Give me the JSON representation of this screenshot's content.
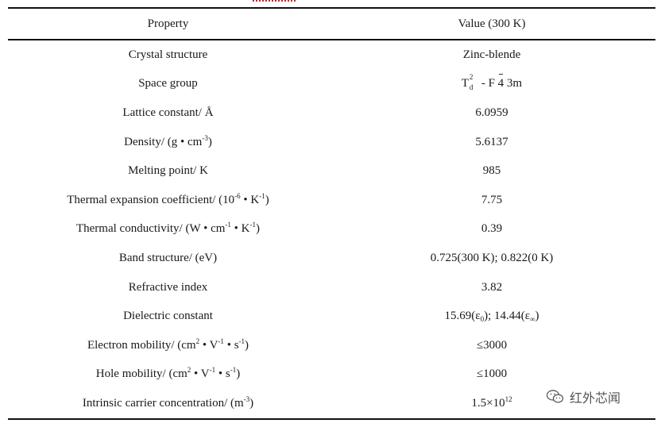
{
  "header": {
    "property": "Property",
    "value": "Value (300 K)"
  },
  "rows": [
    {
      "property": "Crystal structure",
      "value": "Zinc-blende"
    },
    {
      "property": "Space group",
      "value_parts": {
        "T": "T",
        "sup": "2",
        "sub": "d",
        "mid": " - F ",
        "bar": "4",
        "tail": " 3m"
      }
    },
    {
      "property": "Lattice constant/ Å",
      "value": "6.0959"
    },
    {
      "property_parts": {
        "a": "Density/ (g • cm",
        "s1": "-3",
        "b": ")"
      },
      "value": "5.6137"
    },
    {
      "property": "Melting point/ K",
      "value": "985"
    },
    {
      "property_parts": {
        "a": "Thermal expansion coefficient/ (10",
        "s1": "-6",
        "b": " •  K",
        "s2": "-1",
        "c": ")"
      },
      "value": "7.75"
    },
    {
      "property_parts": {
        "a": "Thermal conductivity/ (W • cm",
        "s1": "-1",
        "b": " • K",
        "s2": "-1",
        "c": ")"
      },
      "value": "0.39"
    },
    {
      "property": "Band structure/ (eV)",
      "value": "0.725(300 K); 0.822(0 K)"
    },
    {
      "property": "Refractive index",
      "value": "3.82"
    },
    {
      "property": "Dielectric constant",
      "value_parts": {
        "a": "15.69(ε",
        "s1": "0",
        "b": ");   14.44(ε",
        "s2": "∞",
        "c": ")"
      }
    },
    {
      "property_parts": {
        "a": "Electron mobility/ (cm",
        "s1": "2",
        "b": " • V",
        "s2": "-1",
        "c": " • s",
        "s3": "-1",
        "d": ")"
      },
      "value": "≤3000"
    },
    {
      "property_parts": {
        "a": "Hole mobility/ (cm",
        "s1": "2",
        "b": " • V",
        "s2": "-1",
        "c": " • s",
        "s3": "-1",
        "d": ")"
      },
      "value": "≤1000"
    },
    {
      "property_parts": {
        "a": "Intrinsic carrier concentration/ (m",
        "s1": "-3",
        "b": ")"
      },
      "value_parts": {
        "a": "1.5×10",
        "s1": "12"
      }
    }
  ],
  "watermark": {
    "text": "红外芯闻",
    "icon": "wechat-icon"
  }
}
